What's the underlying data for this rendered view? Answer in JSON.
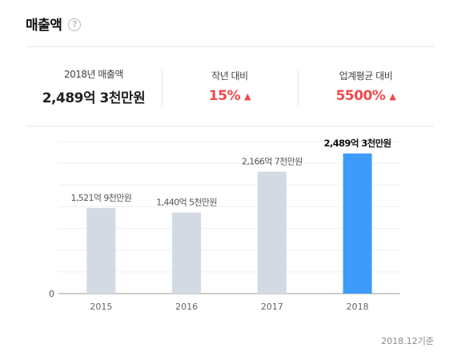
{
  "header": {
    "title": "매출액",
    "help_icon": "question-icon"
  },
  "summary": {
    "revenue_label": "2018년 매출액",
    "revenue_value": "2,489억 3천만원",
    "yoy_label": "작년 대비",
    "yoy_value": "15%",
    "industry_label": "업계평균 대비",
    "industry_value": "5500%",
    "accent_red": "#ef4a4a"
  },
  "chart_data": {
    "type": "bar",
    "categories": [
      "2015",
      "2016",
      "2017",
      "2018"
    ],
    "values": [
      1521.9,
      1440.5,
      2166.7,
      2489.3
    ],
    "data_labels": [
      "1,521억 9천만원",
      "1,440억 5천만원",
      "2,166억 7천만원",
      "2,489억 3천만원"
    ],
    "y_tick_labels": [
      "0"
    ],
    "ylim": [
      0,
      2700
    ],
    "grid": true,
    "bar_color": "#d3dae3",
    "highlight_color": "#3d9bfa",
    "highlight_index": 3
  },
  "footer": {
    "note": "2018.12기준"
  }
}
